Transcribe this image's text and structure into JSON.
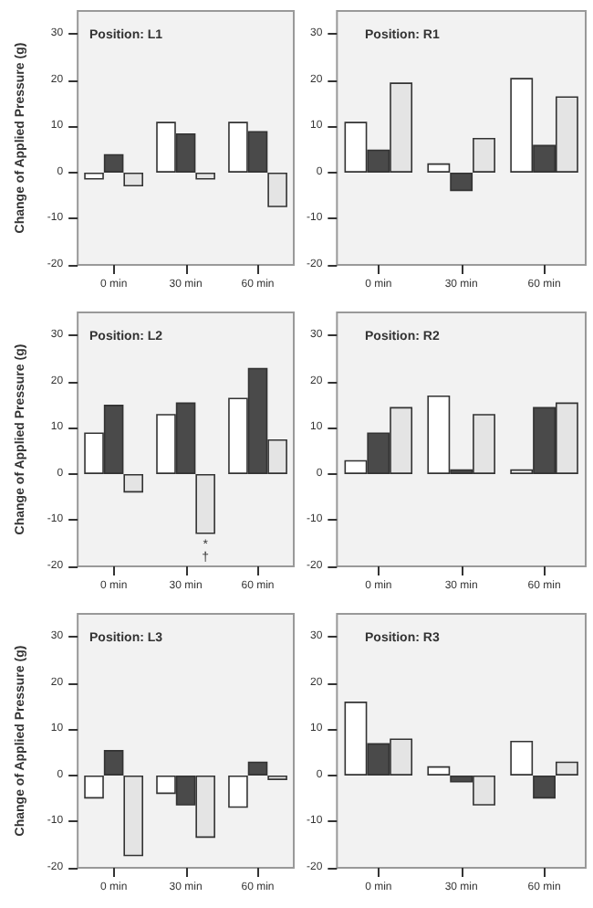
{
  "chart_data": [
    {
      "type": "bar",
      "title": "Position: L1",
      "ylabel": "Change of Applied Pressure (g)",
      "categories": [
        "0 min",
        "30 min",
        "60 min"
      ],
      "series": [
        {
          "color": "#ffffff",
          "values": [
            -1.5,
            11,
            11
          ]
        },
        {
          "color": "#4a4a4a",
          "values": [
            4,
            8.5,
            9
          ]
        },
        {
          "color": "#e4e4e4",
          "values": [
            -3,
            -1.5,
            -7.5
          ]
        }
      ],
      "ylim": [
        -20,
        35
      ],
      "yticks": [
        -20,
        -10,
        0,
        10,
        20,
        30
      ],
      "grid": false
    },
    {
      "type": "bar",
      "title": "Position: R1",
      "categories": [
        "0 min",
        "30 min",
        "60 min"
      ],
      "series": [
        {
          "color": "#ffffff",
          "values": [
            11,
            2,
            20.5
          ]
        },
        {
          "color": "#4a4a4a",
          "values": [
            5,
            -4,
            6
          ]
        },
        {
          "color": "#e4e4e4",
          "values": [
            19.5,
            7.5,
            16.5
          ]
        }
      ],
      "ylim": [
        -20,
        35
      ],
      "yticks": [
        -20,
        -10,
        0,
        10,
        20,
        30
      ],
      "grid": false
    },
    {
      "type": "bar",
      "title": "Position: L2",
      "ylabel": "Change of Applied Pressure (g)",
      "categories": [
        "0 min",
        "30 min",
        "60 min"
      ],
      "series": [
        {
          "color": "#ffffff",
          "values": [
            9,
            13,
            16.5
          ]
        },
        {
          "color": "#4a4a4a",
          "values": [
            15,
            15.5,
            23
          ]
        },
        {
          "color": "#e4e4e4",
          "values": [
            -4,
            -13,
            7.5
          ]
        }
      ],
      "ylim": [
        -20,
        35
      ],
      "yticks": [
        -20,
        -10,
        0,
        10,
        20,
        30
      ],
      "grid": false,
      "annotations": [
        "*",
        "†"
      ]
    },
    {
      "type": "bar",
      "title": "Position: R2",
      "categories": [
        "0 min",
        "30 min",
        "60 min"
      ],
      "series": [
        {
          "color": "#ffffff",
          "values": [
            3,
            17,
            1
          ]
        },
        {
          "color": "#4a4a4a",
          "values": [
            9,
            1,
            14.5
          ]
        },
        {
          "color": "#e4e4e4",
          "values": [
            14.5,
            13,
            15.5
          ]
        }
      ],
      "ylim": [
        -20,
        35
      ],
      "yticks": [
        -20,
        -10,
        0,
        10,
        20,
        30
      ],
      "grid": false
    },
    {
      "type": "bar",
      "title": "Position: L3",
      "ylabel": "Change of Applied Pressure (g)",
      "categories": [
        "0 min",
        "30 min",
        "60 min"
      ],
      "series": [
        {
          "color": "#ffffff",
          "values": [
            -5,
            -4,
            -7
          ]
        },
        {
          "color": "#4a4a4a",
          "values": [
            5.5,
            -6.5,
            3
          ]
        },
        {
          "color": "#e4e4e4",
          "values": [
            -17.5,
            -13.5,
            -1
          ]
        }
      ],
      "ylim": [
        -20,
        35
      ],
      "yticks": [
        -20,
        -10,
        0,
        10,
        20,
        30
      ],
      "grid": false
    },
    {
      "type": "bar",
      "title": "Position: R3",
      "categories": [
        "0 min",
        "30 min",
        "60 min"
      ],
      "series": [
        {
          "color": "#ffffff",
          "values": [
            16,
            2,
            7.5
          ]
        },
        {
          "color": "#4a4a4a",
          "values": [
            7,
            -1.5,
            -5
          ]
        },
        {
          "color": "#e4e4e4",
          "values": [
            8,
            -6.5,
            3
          ]
        }
      ],
      "ylim": [
        -20,
        35
      ],
      "yticks": [
        -20,
        -10,
        0,
        10,
        20,
        30
      ],
      "grid": false
    }
  ]
}
